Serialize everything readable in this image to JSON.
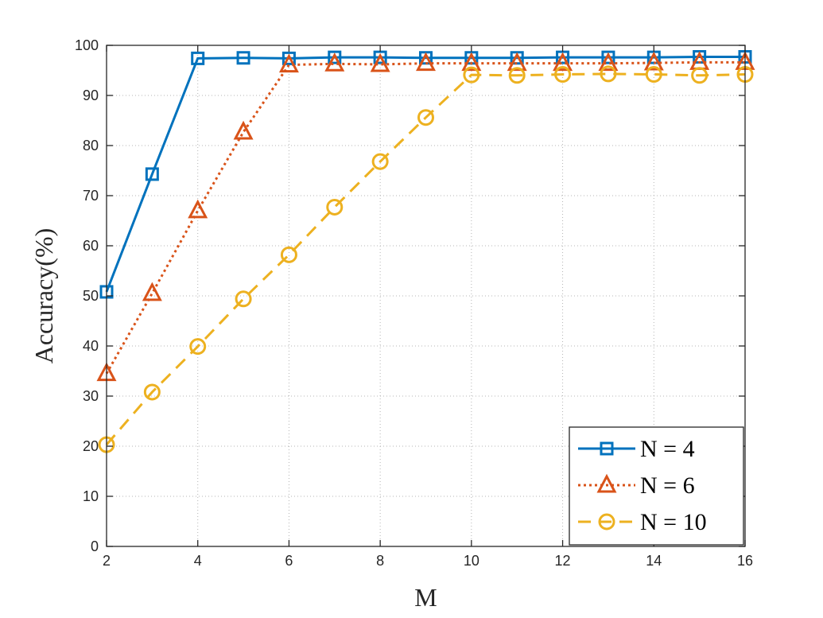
{
  "chart_data": {
    "type": "line",
    "title": "",
    "xlabel": "M",
    "ylabel": "Accuracy(%)",
    "xlim": [
      2,
      16
    ],
    "ylim": [
      0,
      100
    ],
    "xticks": [
      2,
      4,
      6,
      8,
      10,
      12,
      14,
      16
    ],
    "yticks": [
      0,
      10,
      20,
      30,
      40,
      50,
      60,
      70,
      80,
      90,
      100
    ],
    "grid": true,
    "legend_position": "bottom-right",
    "x": [
      2,
      3,
      4,
      5,
      6,
      7,
      8,
      9,
      10,
      11,
      12,
      13,
      14,
      15,
      16
    ],
    "series": [
      {
        "name": "N = 4",
        "color": "#0072BD",
        "line_style": "solid",
        "marker": "square",
        "values": [
          50.8,
          74.3,
          97.4,
          97.5,
          97.4,
          97.6,
          97.6,
          97.5,
          97.5,
          97.5,
          97.6,
          97.6,
          97.6,
          97.7,
          97.7
        ]
      },
      {
        "name": "N = 6",
        "color": "#D95319",
        "line_style": "dotted",
        "marker": "triangle",
        "values": [
          34.5,
          50.5,
          67.0,
          82.7,
          96.1,
          96.3,
          96.2,
          96.4,
          96.4,
          96.4,
          96.4,
          96.4,
          96.5,
          96.6,
          96.6
        ]
      },
      {
        "name": "N = 10",
        "color": "#EDB120",
        "line_style": "dashed",
        "marker": "circle",
        "values": [
          20.3,
          30.8,
          39.9,
          49.4,
          58.2,
          67.7,
          76.8,
          85.6,
          94.1,
          94.0,
          94.2,
          94.3,
          94.2,
          94.0,
          94.2
        ]
      }
    ]
  }
}
